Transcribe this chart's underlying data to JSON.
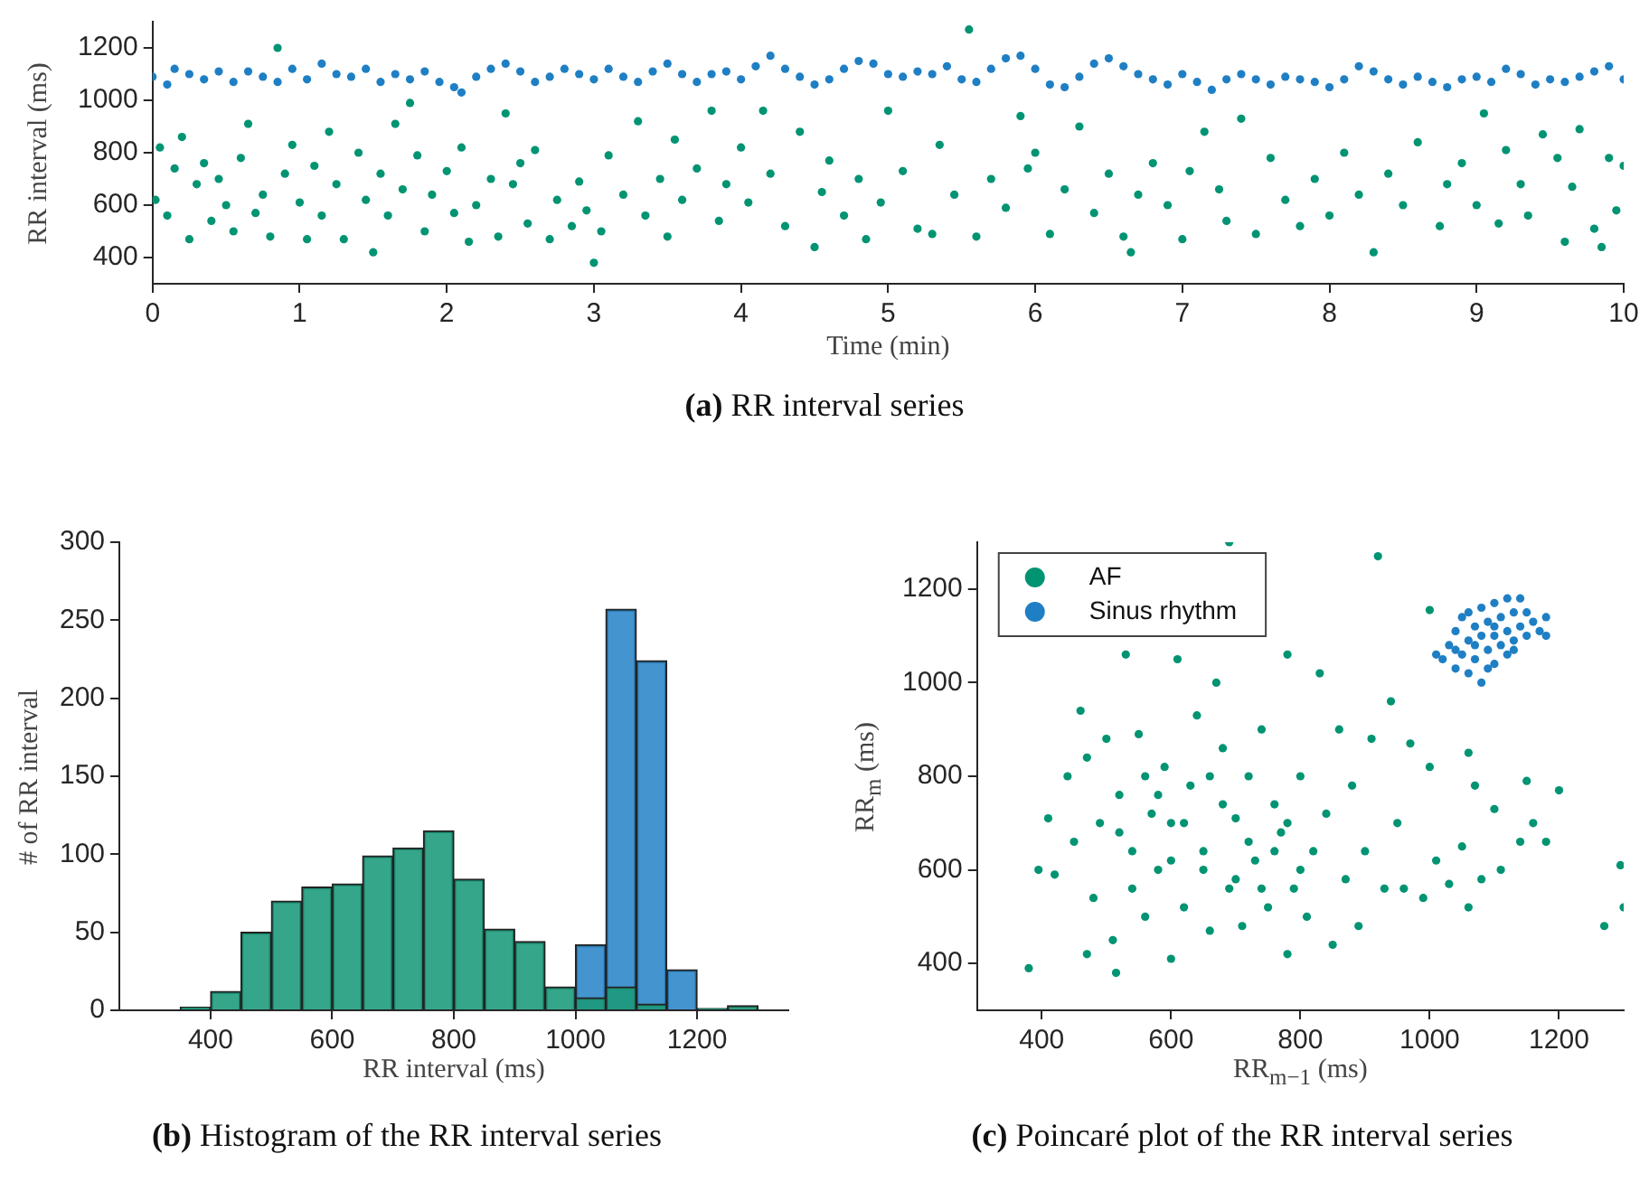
{
  "chart_data": [
    {
      "type": "scatter",
      "title": "(a) RR interval series",
      "xlabel": "Time (min)",
      "ylabel": "RR interval (ms)",
      "xlim": [
        0,
        10
      ],
      "ylim": [
        300,
        1300
      ],
      "xticks": [
        0,
        1,
        2,
        3,
        4,
        5,
        6,
        7,
        8,
        9,
        10
      ],
      "yticks": [
        400,
        600,
        800,
        1000,
        1200
      ],
      "marker": "circle",
      "series": [
        {
          "color": "#009473",
          "x": [
            0.02,
            0.05,
            0.1,
            0.15,
            0.2,
            0.25,
            0.3,
            0.35,
            0.4,
            0.45,
            0.5,
            0.55,
            0.6,
            0.65,
            0.7,
            0.75,
            0.8,
            0.85,
            0.9,
            0.95,
            1.0,
            1.05,
            1.1,
            1.15,
            1.2,
            1.25,
            1.3,
            1.4,
            1.45,
            1.5,
            1.55,
            1.6,
            1.65,
            1.7,
            1.75,
            1.8,
            1.85,
            1.9,
            2.0,
            2.05,
            2.1,
            2.15,
            2.2,
            2.3,
            2.35,
            2.4,
            2.45,
            2.5,
            2.55,
            2.6,
            2.7,
            2.75,
            2.8,
            2.85,
            2.9,
            2.95,
            3.0,
            3.05,
            3.1,
            3.2,
            3.3,
            3.35,
            3.45,
            3.5,
            3.55,
            3.6,
            3.7,
            3.8,
            3.85,
            3.9,
            4.0,
            4.05,
            4.15,
            4.2,
            4.3,
            4.4,
            4.5,
            4.55,
            4.6,
            4.7,
            4.8,
            4.85,
            4.95,
            5.0,
            5.1,
            5.2,
            5.3,
            5.35,
            5.45,
            5.55,
            5.6,
            5.7,
            5.8,
            5.9,
            5.95,
            6.0,
            6.1,
            6.2,
            6.3,
            6.4,
            6.5,
            6.6,
            6.65,
            6.7,
            6.8,
            6.9,
            7.0,
            7.05,
            7.15,
            7.25,
            7.3,
            7.4,
            7.5,
            7.6,
            7.7,
            7.8,
            7.9,
            8.0,
            8.1,
            8.2,
            8.3,
            8.4,
            8.5,
            8.6,
            8.7,
            8.75,
            8.8,
            8.9,
            9.0,
            9.05,
            9.15,
            9.2,
            9.3,
            9.35,
            9.45,
            9.55,
            9.6,
            9.65,
            9.7,
            9.8,
            9.85,
            9.9,
            9.95,
            10
          ],
          "values": [
            620,
            820,
            560,
            740,
            860,
            470,
            680,
            760,
            540,
            700,
            600,
            500,
            780,
            910,
            570,
            640,
            480,
            1200,
            720,
            830,
            610,
            470,
            750,
            560,
            880,
            680,
            470,
            800,
            620,
            420,
            720,
            560,
            910,
            660,
            990,
            790,
            500,
            640,
            730,
            570,
            820,
            460,
            600,
            700,
            480,
            950,
            680,
            760,
            530,
            810,
            470,
            620,
            null,
            520,
            690,
            580,
            380,
            500,
            790,
            640,
            920,
            560,
            700,
            480,
            850,
            620,
            740,
            960,
            540,
            680,
            820,
            610,
            960,
            720,
            520,
            880,
            440,
            650,
            770,
            560,
            700,
            470,
            610,
            960,
            730,
            510,
            490,
            830,
            640,
            1270,
            480,
            700,
            590,
            940,
            740,
            800,
            490,
            660,
            900,
            570,
            720,
            480,
            420,
            640,
            760,
            600,
            470,
            730,
            880,
            660,
            540,
            930,
            490,
            780,
            620,
            520,
            700,
            560,
            800,
            640,
            420,
            720,
            600,
            840,
            null,
            520,
            680,
            760,
            600,
            950,
            530,
            810,
            680,
            560,
            870,
            780,
            460,
            670,
            890,
            510,
            440,
            780,
            580,
            750
          ]
        },
        {
          "color": "#1f7fc4",
          "x": [
            0,
            0.1,
            0.15,
            0.25,
            0.35,
            0.45,
            0.55,
            0.65,
            0.75,
            0.85,
            0.95,
            1.05,
            1.15,
            1.25,
            1.35,
            1.45,
            1.55,
            1.65,
            1.75,
            1.85,
            1.95,
            2.05,
            2.1,
            2.2,
            2.3,
            2.4,
            2.5,
            2.6,
            2.7,
            2.8,
            2.9,
            3.0,
            3.1,
            3.2,
            3.3,
            3.4,
            3.5,
            3.6,
            3.7,
            3.8,
            3.9,
            4.0,
            4.1,
            4.2,
            4.3,
            4.4,
            4.5,
            4.6,
            4.7,
            4.8,
            4.9,
            5.0,
            5.1,
            5.2,
            5.3,
            5.4,
            5.5,
            5.6,
            5.7,
            5.8,
            5.9,
            6.0,
            6.1,
            6.2,
            6.3,
            6.4,
            6.5,
            6.6,
            6.7,
            6.8,
            6.9,
            7.0,
            7.1,
            7.2,
            7.3,
            7.4,
            7.5,
            7.6,
            7.7,
            7.8,
            7.9,
            8.0,
            8.1,
            8.2,
            8.3,
            8.4,
            8.5,
            8.6,
            8.7,
            8.8,
            8.9,
            9.0,
            9.1,
            9.2,
            9.3,
            9.4,
            9.5,
            9.6,
            9.7,
            9.8,
            9.9,
            10
          ],
          "values": [
            1090,
            1060,
            1120,
            1100,
            1080,
            1110,
            1070,
            1110,
            1090,
            1070,
            1120,
            1080,
            1140,
            1100,
            1090,
            1120,
            1070,
            1100,
            1080,
            1110,
            1070,
            1050,
            1030,
            1090,
            1120,
            1140,
            1110,
            1070,
            1090,
            1120,
            1100,
            1080,
            1120,
            1090,
            1070,
            1110,
            1140,
            1100,
            1070,
            1100,
            1110,
            1080,
            1130,
            1170,
            1120,
            1090,
            1060,
            1080,
            1120,
            1150,
            1140,
            1100,
            1090,
            1110,
            1100,
            1130,
            1080,
            1070,
            1120,
            1160,
            1170,
            1120,
            1060,
            1050,
            1090,
            1140,
            1160,
            1130,
            1100,
            1080,
            1060,
            1100,
            1070,
            1040,
            1080,
            1100,
            1080,
            1060,
            1090,
            1080,
            1070,
            1050,
            1080,
            1130,
            1110,
            1080,
            1060,
            1090,
            1070,
            1050,
            1080,
            1090,
            1070,
            1120,
            1100,
            1060,
            1080,
            1070,
            1090,
            1110,
            1130,
            1080
          ]
        }
      ]
    },
    {
      "type": "histogram",
      "title": "(b) Histogram of the RR interval series",
      "xlabel": "RR interval (ms)",
      "ylabel": "# of RR interval",
      "xlim": [
        250,
        1350
      ],
      "ylim": [
        0,
        300
      ],
      "xticks": [
        400,
        600,
        800,
        1000,
        1200
      ],
      "yticks": [
        0,
        50,
        100,
        150,
        200,
        250,
        300
      ],
      "bins": [
        350,
        400,
        450,
        500,
        550,
        600,
        650,
        700,
        750,
        800,
        850,
        900,
        950,
        1000,
        1050,
        1100,
        1150,
        1200,
        1250,
        1300
      ],
      "series": [
        {
          "color": "#1a9a7a",
          "values": [
            2,
            12,
            50,
            70,
            79,
            81,
            99,
            104,
            115,
            84,
            52,
            44,
            15,
            8,
            15,
            4,
            0,
            1,
            3
          ]
        },
        {
          "color": "#2a86c8",
          "values": [
            0,
            0,
            0,
            0,
            0,
            0,
            0,
            0,
            0,
            0,
            0,
            0,
            0,
            42,
            257,
            224,
            26,
            1,
            0
          ]
        }
      ]
    },
    {
      "type": "scatter",
      "title": "(c) Poincaré plot of the RR interval series",
      "xlabel": "RR$_{m−1}$ (ms)",
      "ylabel": "RR$_{m}$ (ms)",
      "xlim": [
        300,
        1300
      ],
      "ylim": [
        300,
        1300
      ],
      "xticks": [
        400,
        600,
        800,
        1000,
        1200
      ],
      "yticks": [
        400,
        600,
        800,
        1000,
        1200
      ],
      "marker": "circle",
      "legend": "top left",
      "series": [
        {
          "name": "AF",
          "color": "#009473",
          "x": [
            380,
            395,
            410,
            420,
            440,
            450,
            460,
            470,
            480,
            470,
            490,
            500,
            510,
            515,
            520,
            530,
            540,
            550,
            560,
            570,
            580,
            590,
            600,
            600,
            610,
            620,
            630,
            640,
            650,
            660,
            670,
            680,
            690,
            690,
            700,
            710,
            720,
            730,
            740,
            750,
            760,
            770,
            780,
            780,
            790,
            800,
            810,
            820,
            830,
            840,
            850,
            860,
            870,
            880,
            890,
            900,
            910,
            920,
            930,
            940,
            950,
            960,
            970,
            990,
            1000,
            1010,
            1030,
            1050,
            1060,
            1060,
            1070,
            1080,
            1100,
            1110,
            1140,
            1150,
            1160,
            1180,
            1200,
            1270,
            1300,
            1295,
            1000,
            650,
            720,
            760,
            600,
            680,
            540,
            620,
            700,
            780,
            580,
            660,
            740,
            800,
            520,
            560
          ],
          "values": [
            390,
            600,
            710,
            590,
            800,
            660,
            940,
            840,
            540,
            420,
            700,
            880,
            450,
            380,
            760,
            1060,
            640,
            890,
            500,
            720,
            600,
            820,
            410,
            700,
            1050,
            520,
            780,
            930,
            640,
            470,
            1000,
            860,
            560,
            1300,
            710,
            480,
            800,
            620,
            900,
            520,
            740,
            680,
            420,
            1060,
            560,
            800,
            500,
            640,
            1020,
            720,
            440,
            900,
            580,
            780,
            480,
            640,
            880,
            1270,
            560,
            960,
            700,
            560,
            870,
            540,
            820,
            620,
            570,
            650,
            850,
            520,
            780,
            580,
            730,
            600,
            660,
            790,
            700,
            660,
            770,
            480,
            520,
            610,
            1155,
            600,
            660,
            640,
            620,
            740,
            560,
            700,
            580,
            700,
            760,
            800,
            560,
            600,
            680,
            800
          ]
        },
        {
          "name": "Sinus rhythm",
          "color": "#1f7fc4",
          "x": [
            1010,
            1020,
            1030,
            1040,
            1040,
            1050,
            1050,
            1060,
            1060,
            1070,
            1070,
            1080,
            1080,
            1080,
            1090,
            1090,
            1100,
            1100,
            1100,
            1110,
            1110,
            1120,
            1120,
            1130,
            1130,
            1140,
            1140,
            1150,
            1150,
            1160,
            1170,
            1180,
            1180,
            1060,
            1090,
            1120,
            1070,
            1100,
            1130,
            1040
          ],
          "values": [
            1060,
            1050,
            1080,
            1030,
            1110,
            1060,
            1140,
            1090,
            1020,
            1120,
            1050,
            1100,
            1160,
            1000,
            1070,
            1130,
            1100,
            1040,
            1170,
            1080,
            1140,
            1110,
            1060,
            1150,
            1090,
            1180,
            1120,
            1100,
            1150,
            1130,
            1110,
            1140,
            1100,
            1150,
            1030,
            1180,
            1080,
            1120,
            1070,
            1070
          ]
        }
      ]
    }
  ]
}
